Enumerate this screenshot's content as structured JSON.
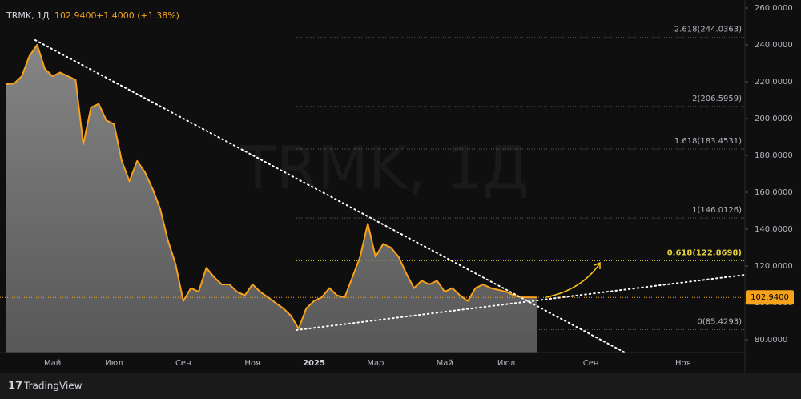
{
  "chart_data": {
    "type": "area",
    "header": {
      "symbol": "TRMK, 1Д",
      "change": "+1.4000 (+1.38%)"
    },
    "branding": "TradingView",
    "color": "#f7a21b",
    "categories": [
      null,
      null,
      null,
      null,
      null,
      null,
      "Май",
      null,
      null,
      null,
      null,
      null,
      null,
      null,
      "Июл",
      null,
      null,
      null,
      null,
      null,
      null,
      null,
      null,
      "Сен",
      null,
      null,
      null,
      null,
      null,
      null,
      null,
      null,
      "Ноя",
      null,
      null,
      null,
      null,
      null,
      null,
      null,
      "2025",
      null,
      null,
      null,
      null,
      null,
      null,
      null,
      "Мар",
      null,
      null,
      null,
      null,
      null,
      null,
      null,
      null,
      "Май",
      null,
      null,
      null,
      null,
      null,
      null,
      null,
      "Июл",
      null,
      null,
      null,
      null,
      null,
      null,
      null,
      null,
      null,
      null,
      "Сен",
      null,
      null,
      null,
      null,
      null,
      null,
      null,
      null,
      null,
      null,
      null,
      "Ноя",
      null,
      null,
      null,
      null,
      null,
      null,
      null
    ],
    "values": [
      218.7,
      219,
      223,
      234,
      240,
      227,
      223,
      225,
      223,
      221,
      186,
      206,
      208,
      199,
      197,
      177,
      166,
      177,
      171,
      162,
      151,
      134,
      121,
      101,
      108,
      106,
      119,
      114,
      110,
      110,
      106,
      104,
      110,
      106,
      103,
      100,
      97,
      93,
      86,
      97,
      101,
      103,
      108,
      104,
      103,
      114,
      125,
      143,
      125,
      132,
      130,
      125,
      116,
      108,
      112,
      110,
      112,
      106,
      108,
      104,
      101,
      108,
      110,
      108,
      107,
      106,
      104,
      103,
      103,
      102.94,
      null,
      null,
      null,
      null,
      null,
      null,
      null,
      null,
      null,
      null,
      null,
      null,
      null,
      null,
      null,
      null,
      null,
      null,
      null,
      null,
      null,
      null,
      null,
      null,
      null,
      null
    ],
    "ylim": [
      78,
      261
    ],
    "yticks": [
      {
        "value": 80,
        "label": "80.0000"
      },
      {
        "value": 100,
        "label": "100.0000"
      },
      {
        "value": 120,
        "label": "120.0000"
      },
      {
        "value": 140,
        "label": "140.0000"
      },
      {
        "value": 160,
        "label": "160.0000"
      },
      {
        "value": 180,
        "label": "180.0000"
      },
      {
        "value": 200,
        "label": "200.0000"
      },
      {
        "value": 220,
        "label": "220.0000"
      },
      {
        "value": 240,
        "label": "240.0000"
      },
      {
        "value": 260,
        "label": "260.0000"
      }
    ],
    "last_price": {
      "value": 102.94,
      "label": "102.9400"
    },
    "fib_levels": [
      {
        "value": 244.0363,
        "label": "2.618(244.0363)",
        "color": "#5d5d5d"
      },
      {
        "value": 206.5959,
        "label": "2(206.5959)",
        "color": "#5d5d5d"
      },
      {
        "value": 183.4531,
        "label": "1.618(183.4531)",
        "color": "#5d5d5d"
      },
      {
        "value": 146.0126,
        "label": "1(146.0126)",
        "color": "#5d5d5d"
      },
      {
        "value": 122.8698,
        "label": "0.618(122.8698)",
        "color": "#e0cf3a"
      },
      {
        "value": 85.4293,
        "label": "0(85.4293)",
        "color": "#5d5d5d"
      }
    ]
  }
}
